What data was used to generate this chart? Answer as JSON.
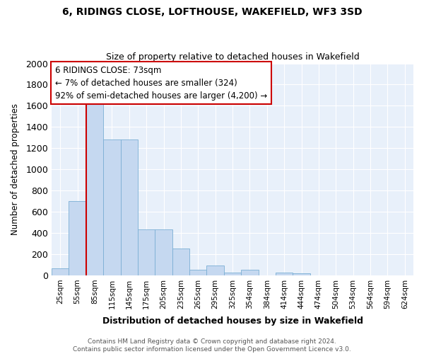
{
  "title1": "6, RIDINGS CLOSE, LOFTHOUSE, WAKEFIELD, WF3 3SD",
  "title2": "Size of property relative to detached houses in Wakefield",
  "xlabel": "Distribution of detached houses by size in Wakefield",
  "ylabel": "Number of detached properties",
  "footnote": "Contains HM Land Registry data © Crown copyright and database right 2024.\nContains public sector information licensed under the Open Government Licence v3.0.",
  "bar_categories": [
    "25sqm",
    "55sqm",
    "85sqm",
    "115sqm",
    "145sqm",
    "175sqm",
    "205sqm",
    "235sqm",
    "265sqm",
    "295sqm",
    "325sqm",
    "354sqm",
    "384sqm",
    "414sqm",
    "444sqm",
    "474sqm",
    "504sqm",
    "534sqm",
    "564sqm",
    "594sqm",
    "624sqm"
  ],
  "bar_values": [
    65,
    700,
    1630,
    1285,
    1285,
    435,
    435,
    253,
    50,
    90,
    28,
    50,
    0,
    28,
    18,
    0,
    0,
    0,
    0,
    0,
    0
  ],
  "bar_color": "#c5d8f0",
  "bar_edgecolor": "#7bafd4",
  "vline_x": 2.0,
  "vline_color": "#cc0000",
  "ylim": [
    0,
    2000
  ],
  "yticks": [
    0,
    200,
    400,
    600,
    800,
    1000,
    1200,
    1400,
    1600,
    1800,
    2000
  ],
  "annotation_text": "6 RIDINGS CLOSE: 73sqm\n← 7% of detached houses are smaller (324)\n92% of semi-detached houses are larger (4,200) →",
  "annotation_box_color": "white",
  "annotation_border_color": "#cc0000",
  "bg_color": "#e8f0fa"
}
